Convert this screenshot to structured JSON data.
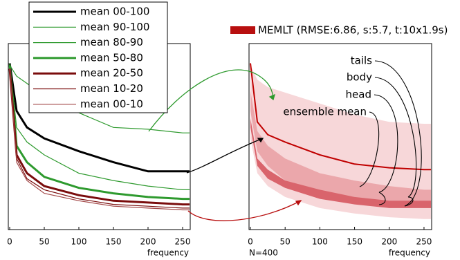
{
  "chart_data": [
    {
      "type": "line",
      "x": [
        0,
        10,
        25,
        50,
        100,
        150,
        200,
        250,
        260
      ],
      "xlim": [
        -2,
        261
      ],
      "xticks": [
        0,
        50,
        100,
        150,
        200,
        250
      ],
      "ylim": [
        0,
        100
      ],
      "xlabel": "frequency",
      "series": [
        {
          "name": "mean 00-100",
          "color": "#000000",
          "width": 3,
          "values": [
            90,
            64,
            55,
            49,
            42,
            36,
            31,
            31,
            31
          ]
        },
        {
          "name": "mean 90-100",
          "color": "#2e9a2e",
          "width": 1.2,
          "values": [
            89,
            83,
            79,
            72,
            63,
            55,
            54,
            52,
            52
          ]
        },
        {
          "name": "mean 80-90",
          "color": "#2e9a2e",
          "width": 1.2,
          "values": [
            90,
            55,
            47,
            40,
            30,
            26,
            23,
            21,
            21
          ]
        },
        {
          "name": "mean 50-80",
          "color": "#2e9a2e",
          "width": 3,
          "values": [
            89,
            45,
            36,
            28,
            22,
            19,
            17,
            16,
            16
          ]
        },
        {
          "name": "mean 20-50",
          "color": "#7a0c0c",
          "width": 3,
          "values": [
            87,
            40,
            30,
            23,
            18,
            15,
            14,
            13,
            13
          ]
        },
        {
          "name": "mean 10-20",
          "color": "#7a0c0c",
          "width": 1.2,
          "values": [
            87,
            38,
            27,
            21,
            16,
            13,
            12,
            11,
            11
          ]
        },
        {
          "name": "mean 00-10",
          "color": "#a34848",
          "width": 1.2,
          "values": [
            87,
            36,
            26,
            19,
            15,
            12,
            11,
            10,
            10
          ]
        }
      ]
    },
    {
      "type": "band",
      "label": "MEMLT (RMSE:6.86, s:5.7, t:10x1.9s)",
      "label_color": "#b80f0f",
      "note": "N=400",
      "x": [
        0,
        10,
        25,
        50,
        100,
        150,
        200,
        250,
        260
      ],
      "xlim": [
        -2,
        261
      ],
      "xticks": [
        0,
        50,
        100,
        150,
        200,
        250
      ],
      "ylim": [
        0,
        100
      ],
      "xlabel": "frequency",
      "series": [
        {
          "name": "tails",
          "color": "#f7d7d9",
          "values": [
            89,
            81,
            77,
            74,
            68,
            62,
            58,
            57,
            57
          ],
          "lower": [
            49,
            30,
            23,
            17,
            11,
            8,
            6,
            5,
            5
          ]
        },
        {
          "name": "body",
          "color": "#eba7ab",
          "values": [
            75,
            53,
            45,
            38,
            30,
            26,
            23,
            21,
            21
          ],
          "lower": [
            64,
            42,
            34,
            26,
            19,
            14,
            12,
            11,
            11
          ]
        },
        {
          "name": "head",
          "color": "#d9646c",
          "values": [
            60,
            38,
            32,
            26,
            21,
            17,
            15,
            15,
            15
          ],
          "lower": [
            55,
            34,
            27,
            22,
            16,
            13,
            11,
            11,
            11
          ]
        },
        {
          "name": "ensemble mean",
          "color": "#c00000",
          "line": true,
          "values": [
            90,
            58,
            51,
            47,
            40,
            35,
            33,
            32,
            32
          ]
        }
      ]
    }
  ]
}
